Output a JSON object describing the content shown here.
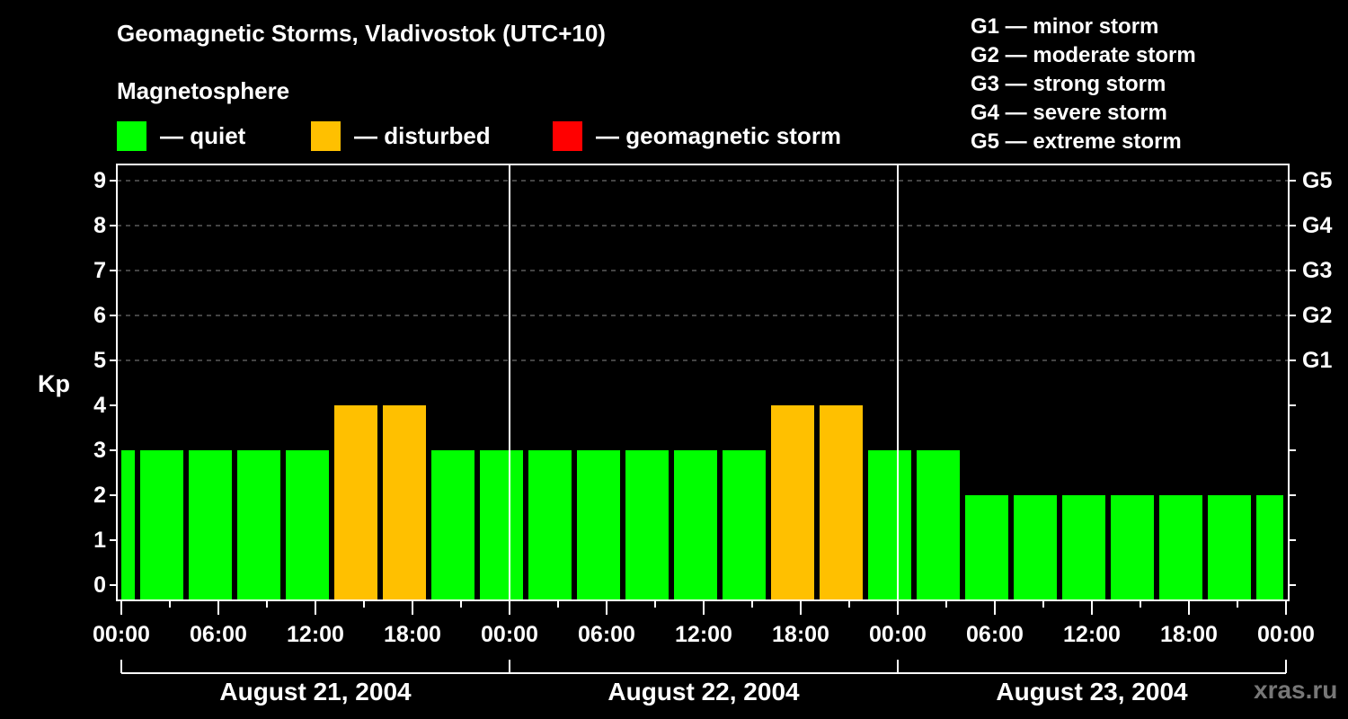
{
  "header": {
    "title": "Geomagnetic Storms, Vladivostok (UTC+10)",
    "subtitle": "Magnetosphere"
  },
  "legend": [
    {
      "label": "— quiet",
      "color": "#00ff00"
    },
    {
      "label": "— disturbed",
      "color": "#ffc000"
    },
    {
      "label": "— geomagnetic storm",
      "color": "#ff0000"
    }
  ],
  "storm_scale": [
    "G1 — minor storm",
    "G2 — moderate storm",
    "G3 — strong storm",
    "G4 — severe storm",
    "G5 — extreme storm"
  ],
  "axes": {
    "y_label": "Kp",
    "y_ticks": [
      "0",
      "1",
      "2",
      "3",
      "4",
      "5",
      "6",
      "7",
      "8",
      "9"
    ],
    "g_ticks": [
      "G1",
      "G2",
      "G3",
      "G4",
      "G5"
    ],
    "x_ticks": [
      "00:00",
      "06:00",
      "12:00",
      "18:00",
      "00:00",
      "06:00",
      "12:00",
      "18:00",
      "00:00",
      "06:00",
      "12:00",
      "18:00",
      "00:00"
    ],
    "days": [
      "August 21, 2004",
      "August 22, 2004",
      "August 23, 2004"
    ]
  },
  "watermark": "xras.ru",
  "colors": {
    "quiet": "#00ff00",
    "disturbed": "#ffc000",
    "storm": "#ff0000",
    "background": "#000000",
    "axis": "#ffffff",
    "grid": "#888888"
  },
  "chart_data": {
    "type": "bar",
    "title": "Geomagnetic Storms, Vladivostok (UTC+10)",
    "subtitle": "Magnetosphere",
    "xlabel": "",
    "ylabel": "Kp",
    "ylim": [
      0,
      9
    ],
    "secondary_y_labels": {
      "5": "G1",
      "6": "G2",
      "7": "G3",
      "8": "G4",
      "9": "G5"
    },
    "grid": "dashed horizontal lines at Kp 5-9",
    "legend_position": "top",
    "categories": [
      "Aug 21 -02:00",
      "Aug 21 01:00",
      "Aug 21 04:00",
      "Aug 21 07:00",
      "Aug 21 10:00",
      "Aug 21 13:00",
      "Aug 21 16:00",
      "Aug 21 19:00",
      "Aug 21 22:00",
      "Aug 22 01:00",
      "Aug 22 04:00",
      "Aug 22 07:00",
      "Aug 22 10:00",
      "Aug 22 13:00",
      "Aug 22 16:00",
      "Aug 22 19:00",
      "Aug 22 22:00",
      "Aug 23 01:00",
      "Aug 23 04:00",
      "Aug 23 07:00",
      "Aug 23 10:00",
      "Aug 23 13:00",
      "Aug 23 16:00",
      "Aug 23 19:00",
      "Aug 23 22:00"
    ],
    "values": [
      3,
      3,
      3,
      3,
      3,
      4,
      4,
      3,
      3,
      3,
      3,
      3,
      3,
      3,
      4,
      4,
      3,
      3,
      2,
      2,
      2,
      2,
      2,
      2,
      2
    ],
    "status": [
      "quiet",
      "quiet",
      "quiet",
      "quiet",
      "quiet",
      "disturbed",
      "disturbed",
      "quiet",
      "quiet",
      "quiet",
      "quiet",
      "quiet",
      "quiet",
      "quiet",
      "disturbed",
      "disturbed",
      "quiet",
      "quiet",
      "quiet",
      "quiet",
      "quiet",
      "quiet",
      "quiet",
      "quiet",
      "quiet"
    ],
    "x_tick_labels": [
      "00:00",
      "06:00",
      "12:00",
      "18:00",
      "00:00",
      "06:00",
      "12:00",
      "18:00",
      "00:00",
      "06:00",
      "12:00",
      "18:00",
      "00:00"
    ],
    "day_labels": [
      "August 21, 2004",
      "August 22, 2004",
      "August 23, 2004"
    ]
  }
}
